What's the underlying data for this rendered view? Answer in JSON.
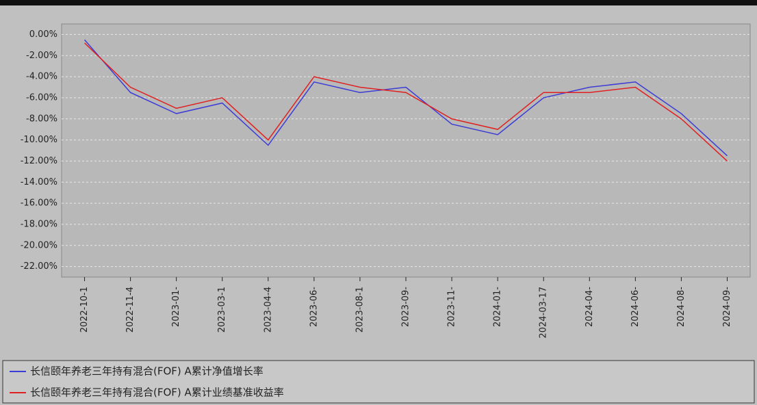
{
  "chart_data": {
    "type": "line",
    "categories": [
      "2022-10-1",
      "2022-11-4",
      "2023-01-",
      "2023-03-1",
      "2023-04-4",
      "2023-06-",
      "2023-08-1",
      "2023-09-",
      "2023-11-",
      "2024-01-",
      "2024-03-17",
      "2024-04-",
      "2024-06-",
      "2024-08-",
      "2024-09-"
    ],
    "series": [
      {
        "name": "长信颐年养老三年持有混合(FOF) A累计净值增长率",
        "color": "#3b3bd6",
        "values": [
          -0.5,
          -5.5,
          -7.5,
          -6.5,
          -10.5,
          -4.5,
          -5.5,
          -5.0,
          -8.5,
          -9.5,
          -6.0,
          -5.0,
          -4.5,
          -7.5,
          -11.5
        ]
      },
      {
        "name": "长信颐年养老三年持有混合(FOF) A累计业绩基准收益率",
        "color": "#e02020",
        "values": [
          -0.8,
          -5.0,
          -7.0,
          -6.0,
          -10.0,
          -4.0,
          -5.0,
          -5.5,
          -8.0,
          -9.0,
          -5.5,
          -5.5,
          -5.0,
          -8.0,
          -12.0
        ]
      }
    ],
    "ylim": [
      -23,
      1
    ],
    "yticks": [
      {
        "value": 0,
        "label": "0.00%"
      },
      {
        "value": -2,
        "label": "-2.00%"
      },
      {
        "value": -4,
        "label": "-4.00%"
      },
      {
        "value": -6,
        "label": "-6.00%"
      },
      {
        "value": -8,
        "label": "-8.00%"
      },
      {
        "value": -10,
        "label": "-10.00%"
      },
      {
        "value": -12,
        "label": "-12.00%"
      },
      {
        "value": -14,
        "label": "-14.00%"
      },
      {
        "value": -16,
        "label": "-16.00%"
      },
      {
        "value": -18,
        "label": "-18.00%"
      },
      {
        "value": -20,
        "label": "-20.00%"
      },
      {
        "value": -22,
        "label": "-22.00%"
      }
    ],
    "grid": true
  }
}
